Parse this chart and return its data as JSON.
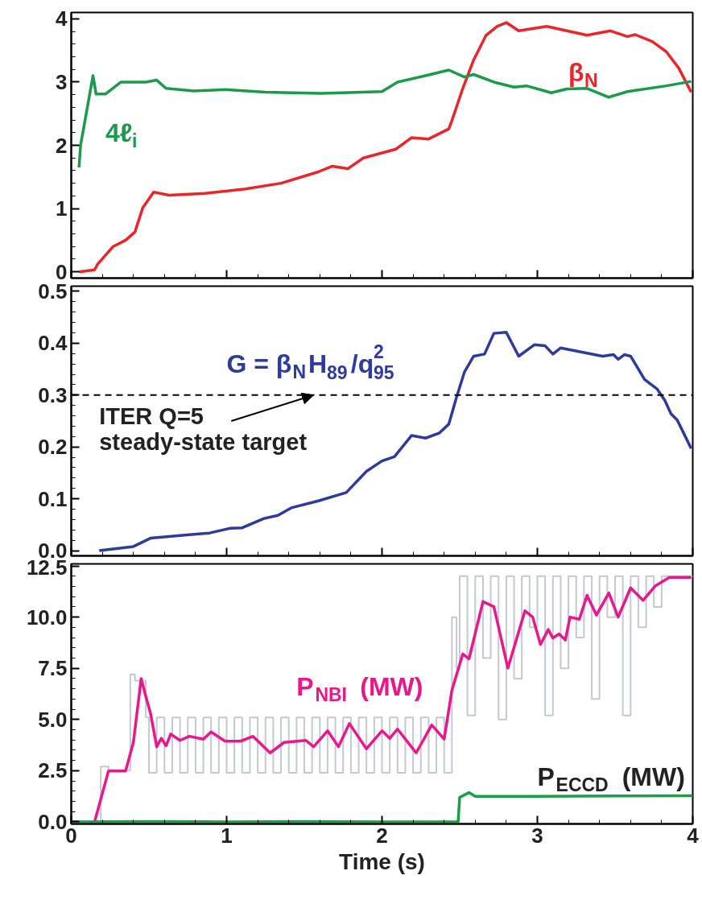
{
  "chart_data": [
    {
      "type": "line",
      "xlim": [
        0,
        4
      ],
      "ylim": [
        -0.1,
        4.1
      ],
      "xticks": [
        0,
        1,
        2,
        3,
        4
      ],
      "yticks": [
        0,
        1,
        2,
        3,
        4
      ],
      "tick_labels": "y",
      "series": [
        {
          "name": "β$_{N}$",
          "color": "#e8262a",
          "x": [
            0.05,
            0.15,
            0.17,
            0.27,
            0.35,
            0.41,
            0.46,
            0.53,
            0.63,
            0.86,
            1.12,
            1.35,
            1.59,
            1.68,
            1.78,
            1.88,
            2.09,
            2.19,
            2.3,
            2.43,
            2.45,
            2.52,
            2.59,
            2.67,
            2.74,
            2.8,
            2.88,
            3.06,
            3.32,
            3.47,
            3.58,
            3.63,
            3.74,
            3.83,
            3.91,
            3.99
          ],
          "values": [
            0.0,
            0.03,
            0.12,
            0.4,
            0.5,
            0.63,
            1.01,
            1.26,
            1.21,
            1.24,
            1.31,
            1.4,
            1.58,
            1.67,
            1.63,
            1.8,
            1.94,
            2.12,
            2.1,
            2.26,
            2.39,
            2.9,
            3.35,
            3.74,
            3.88,
            3.94,
            3.81,
            3.88,
            3.74,
            3.81,
            3.72,
            3.75,
            3.64,
            3.48,
            3.22,
            2.84
          ]
        },
        {
          "name": "4ℓ$_{i}$",
          "color": "#1a9a4a",
          "x": [
            0.05,
            0.06,
            0.14,
            0.16,
            0.22,
            0.32,
            0.48,
            0.55,
            0.61,
            0.79,
            0.99,
            1.25,
            1.61,
            2.0,
            2.1,
            2.28,
            2.43,
            2.53,
            2.59,
            2.72,
            2.85,
            2.93,
            3.09,
            3.19,
            3.32,
            3.46,
            3.58,
            3.83,
            3.99
          ],
          "values": [
            1.65,
            2.0,
            3.1,
            2.81,
            2.81,
            3.0,
            3.0,
            3.03,
            2.9,
            2.86,
            2.88,
            2.84,
            2.82,
            2.85,
            3.0,
            3.1,
            3.19,
            3.08,
            3.12,
            3.0,
            2.92,
            2.94,
            2.83,
            2.89,
            2.9,
            2.76,
            2.85,
            2.94,
            3.01
          ]
        }
      ]
    },
    {
      "type": "line",
      "xlim": [
        0,
        4
      ],
      "ylim": [
        -0.01,
        0.51
      ],
      "xticks": [
        0,
        1,
        2,
        3,
        4
      ],
      "yticks": [
        {
          "value": 0,
          "label": "0.0"
        },
        {
          "value": 0.1,
          "label": "0.1"
        },
        {
          "value": 0.2,
          "label": "0.2"
        },
        {
          "value": 0.3,
          "label": "0.3"
        },
        {
          "value": 0.4,
          "label": "0.4"
        },
        {
          "value": 0.5,
          "label": "0.5"
        }
      ],
      "tick_labels": "y",
      "ref_lines": [
        {
          "axis": "y",
          "value": 0.3,
          "color": "#000000",
          "line_style": "dashed"
        }
      ],
      "annotations": [
        {
          "text": "ITER Q=5\nsteady-state target",
          "x": 1.56,
          "y": 0.3
        }
      ],
      "series": [
        {
          "name": "G = β$_{N}$H$_{89}$/q$_{95}$$^{2}$",
          "color": "#2e3a9c",
          "x": [
            0.18,
            0.4,
            0.51,
            0.73,
            0.89,
            1.02,
            1.1,
            1.24,
            1.33,
            1.42,
            1.59,
            1.77,
            1.9,
            2.0,
            2.08,
            2.19,
            2.28,
            2.37,
            2.43,
            2.48,
            2.53,
            2.59,
            2.66,
            2.72,
            2.8,
            2.88,
            2.98,
            3.05,
            3.1,
            3.15,
            3.42,
            3.49,
            3.52,
            3.56,
            3.6,
            3.69,
            3.77,
            3.82,
            3.86,
            3.9,
            3.99
          ],
          "values": [
            0.0,
            0.008,
            0.024,
            0.03,
            0.034,
            0.043,
            0.044,
            0.062,
            0.068,
            0.083,
            0.096,
            0.112,
            0.153,
            0.173,
            0.181,
            0.222,
            0.217,
            0.227,
            0.244,
            0.296,
            0.344,
            0.375,
            0.379,
            0.419,
            0.421,
            0.375,
            0.397,
            0.395,
            0.379,
            0.391,
            0.375,
            0.378,
            0.369,
            0.378,
            0.375,
            0.33,
            0.312,
            0.29,
            0.264,
            0.252,
            0.197
          ]
        }
      ]
    },
    {
      "type": "line",
      "xlim": [
        0,
        4
      ],
      "ylim": [
        -0.1,
        12.6
      ],
      "xticks": [
        0,
        1,
        2,
        3,
        4
      ],
      "xlabel": "Time (s)",
      "yticks": [
        {
          "value": 0,
          "label": "0.0"
        },
        {
          "value": 2.5,
          "label": "2.5"
        },
        {
          "value": 5,
          "label": "5.0"
        },
        {
          "value": 7.5,
          "label": "7.5"
        },
        {
          "value": 10,
          "label": "10.0"
        },
        {
          "value": 12.5,
          "label": "12.5"
        }
      ],
      "series": [
        {
          "type": "step",
          "color": "#c4c8d0",
          "x": [
            0.15,
            0.19,
            0.24,
            0.38,
            0.41,
            0.48,
            0.5,
            0.55,
            0.6,
            0.65,
            0.7,
            0.75,
            0.8,
            0.85,
            0.9,
            0.95,
            1.0,
            1.05,
            1.1,
            1.15,
            1.2,
            1.25,
            1.3,
            1.35,
            1.4,
            1.45,
            1.5,
            1.55,
            1.6,
            1.65,
            1.7,
            1.75,
            1.8,
            1.85,
            1.9,
            1.95,
            2.0,
            2.05,
            2.1,
            2.15,
            2.2,
            2.25,
            2.3,
            2.35,
            2.4,
            2.45,
            2.48,
            2.5,
            2.55,
            2.6,
            2.65,
            2.7,
            2.75,
            2.8,
            2.85,
            2.9,
            2.95,
            3.0,
            3.05,
            3.1,
            3.15,
            3.2,
            3.25,
            3.3,
            3.35,
            3.4,
            3.45,
            3.5,
            3.55,
            3.6,
            3.65,
            3.7,
            3.75,
            3.8,
            3.85,
            4.0
          ],
          "values": [
            0,
            2.7,
            2.5,
            7.2,
            6.9,
            5.1,
            2.4,
            5.1,
            2.4,
            5.1,
            2.4,
            5.1,
            2.4,
            5.1,
            2.4,
            5.1,
            2.4,
            5.1,
            2.4,
            5.1,
            2.4,
            5.1,
            2.4,
            5.1,
            2.4,
            5.1,
            2.4,
            5.1,
            2.4,
            5.1,
            2.4,
            5.1,
            2.4,
            5.1,
            2.4,
            5.1,
            2.4,
            5.1,
            2.4,
            5.1,
            2.4,
            5.1,
            2.4,
            5.1,
            2.4,
            10.0,
            7.5,
            12.0,
            5.2,
            12.0,
            8.0,
            12.0,
            5.0,
            12.0,
            7.0,
            12.0,
            9.5,
            12.0,
            5.2,
            12.0,
            7.5,
            12.0,
            9.0,
            12.0,
            6.0,
            12.0,
            10.0,
            12.0,
            5.2,
            12.0,
            9.5,
            12.0,
            10.5,
            12.0,
            12.0,
            12.0
          ]
        },
        {
          "name": "P$_{NBI}$ (MW)",
          "color": "#e8188c",
          "x": [
            0.15,
            0.24,
            0.35,
            0.4,
            0.45,
            0.48,
            0.51,
            0.55,
            0.58,
            0.61,
            0.64,
            0.7,
            0.76,
            0.85,
            0.9,
            0.99,
            1.09,
            1.17,
            1.28,
            1.37,
            1.51,
            1.56,
            1.65,
            1.72,
            1.79,
            1.9,
            2.0,
            2.05,
            2.1,
            2.22,
            2.32,
            2.4,
            2.45,
            2.52,
            2.56,
            2.65,
            2.72,
            2.76,
            2.81,
            2.92,
            2.97,
            3.02,
            3.07,
            3.1,
            3.14,
            3.18,
            3.21,
            3.27,
            3.32,
            3.38,
            3.46,
            3.52,
            3.6,
            3.68,
            3.76,
            3.85,
            3.99
          ],
          "values": [
            0,
            2.49,
            2.49,
            3.88,
            7.0,
            6.12,
            5.31,
            3.67,
            4.08,
            3.71,
            4.29,
            3.98,
            4.18,
            4.04,
            4.39,
            3.94,
            3.94,
            4.18,
            3.37,
            3.88,
            3.98,
            3.67,
            4.45,
            3.67,
            4.8,
            3.57,
            4.45,
            4.08,
            4.53,
            3.37,
            4.73,
            4.04,
            6.43,
            8.2,
            7.96,
            10.76,
            10.51,
            9.18,
            7.51,
            10.31,
            10.0,
            8.67,
            9.39,
            8.98,
            9.18,
            8.88,
            10.0,
            9.9,
            11.06,
            10.1,
            11.18,
            10.0,
            11.43,
            10.82,
            11.53,
            11.94,
            11.94
          ]
        },
        {
          "name": "P$_{ECCD}$ (MW)",
          "color": "#18a048",
          "x": [
            0,
            0.5,
            1.0,
            1.5,
            2.0,
            2.49,
            2.5,
            2.56,
            2.6,
            3.0,
            3.5,
            4.0
          ],
          "values": [
            0,
            0.02,
            0,
            0.02,
            0,
            0,
            1.2,
            1.43,
            1.25,
            1.25,
            1.27,
            1.28
          ]
        }
      ]
    }
  ]
}
